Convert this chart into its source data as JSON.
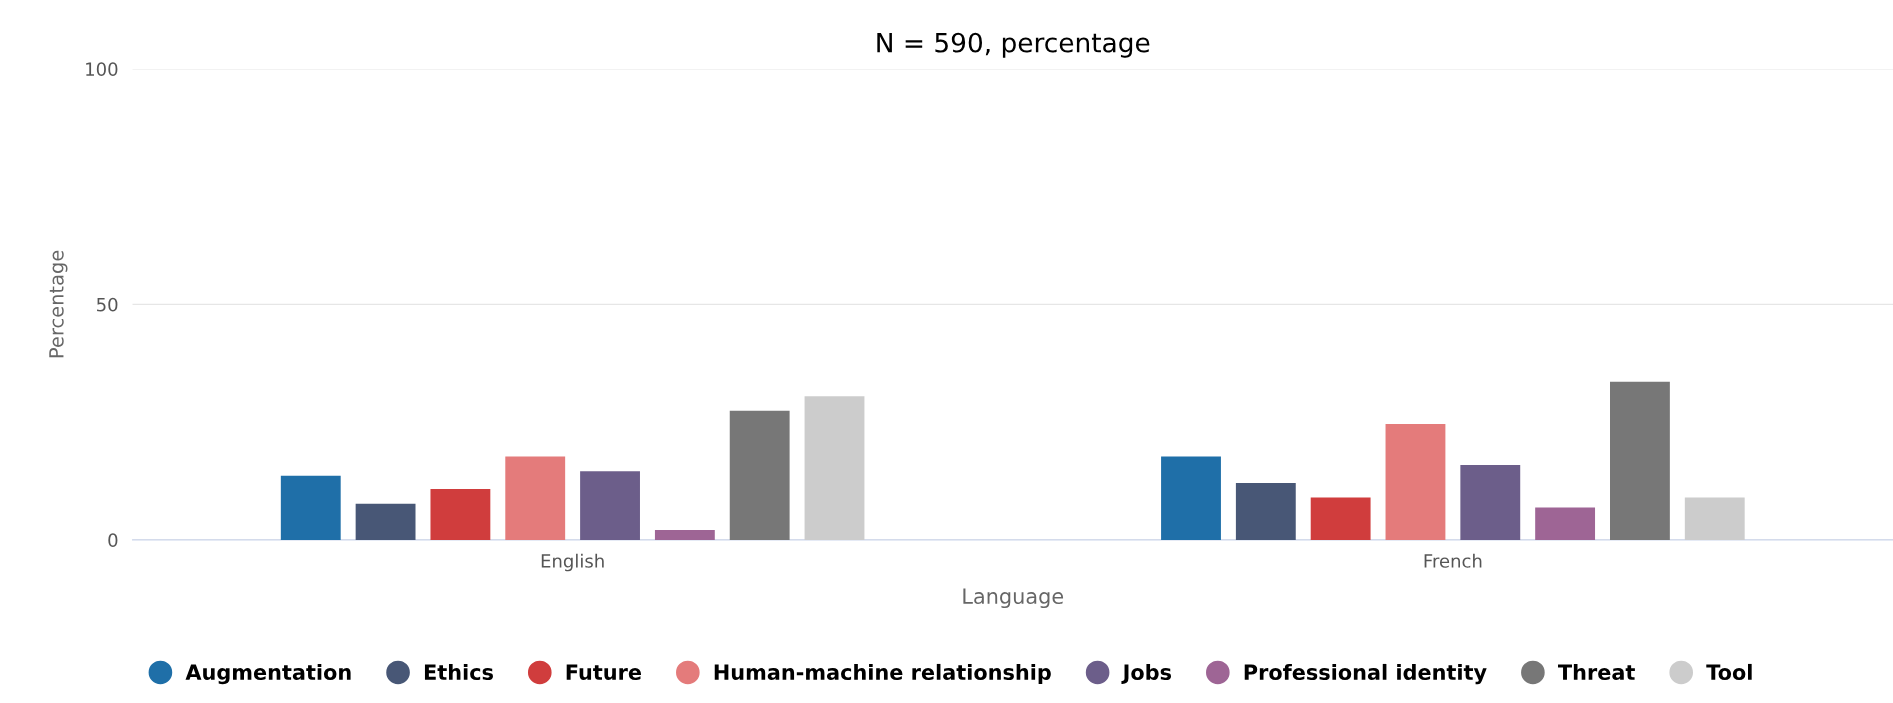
{
  "chart_data": {
    "type": "bar",
    "title": "N = 590, percentage",
    "xlabel": "Language",
    "ylabel": "Percentage",
    "categories": [
      "English",
      "French"
    ],
    "series": [
      {
        "name": "Augmentation",
        "color": "#1f6fa8",
        "values": [
          13.6,
          17.7
        ]
      },
      {
        "name": "Ethics",
        "color": "#485776",
        "values": [
          7.7,
          12.1
        ]
      },
      {
        "name": "Future",
        "color": "#d03d3d",
        "values": [
          10.8,
          9.0
        ]
      },
      {
        "name": "Human-machine relationship",
        "color": "#e47b7b",
        "values": [
          17.7,
          24.6
        ]
      },
      {
        "name": "Jobs",
        "color": "#6c5e8a",
        "values": [
          14.6,
          15.9
        ]
      },
      {
        "name": "Professional identity",
        "color": "#9e6595",
        "values": [
          2.1,
          6.9
        ]
      },
      {
        "name": "Threat",
        "color": "#777777",
        "values": [
          27.4,
          33.6
        ]
      },
      {
        "name": "Tool",
        "color": "#cccccc",
        "values": [
          30.5,
          9.0
        ]
      }
    ],
    "ylim": [
      0,
      100
    ],
    "yticks": [
      0,
      50,
      100
    ],
    "grid": "y",
    "legend": "bottom"
  }
}
